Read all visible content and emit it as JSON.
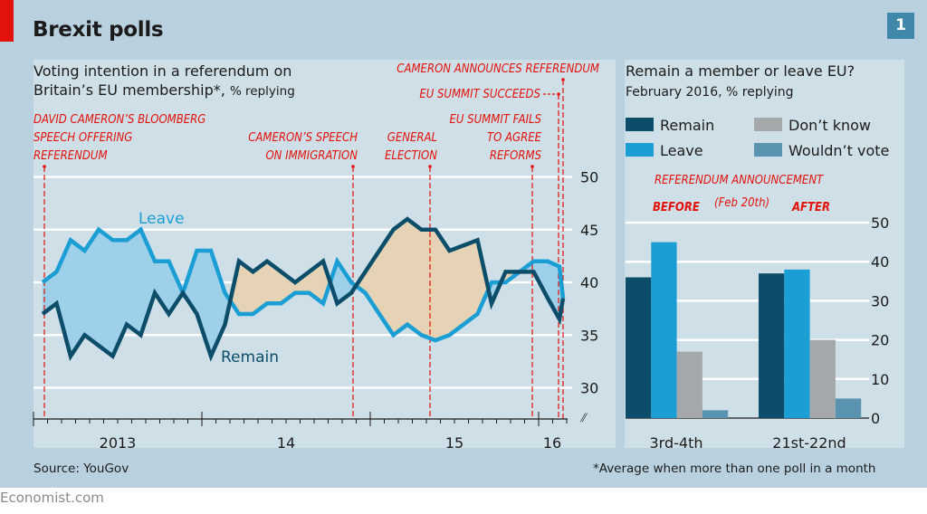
{
  "header": {
    "title": "Brexit polls",
    "badge": "1"
  },
  "left_chart": {
    "subtitle_line1": "Voting intention in a referendum on",
    "subtitle_line2": "Britain’s EU membership*,",
    "subtitle_unit": "% replying",
    "series_label_leave": "Leave",
    "series_label_remain": "Remain",
    "y_ticks": [
      "50",
      "45",
      "40",
      "35",
      "30"
    ],
    "x_labels": [
      "2013",
      "14",
      "15",
      "16"
    ],
    "annotations": [
      {
        "lines": [
          "DAVID CAMERON’S BLOOMBERG",
          "SPEECH OFFERING",
          "REFERENDUM"
        ],
        "month_index": 0.7
      },
      {
        "lines": [
          "CAMERON’S SPEECH",
          "ON IMMIGRATION"
        ],
        "month_index": 22.7
      },
      {
        "lines": [
          "GENERAL",
          "ELECTION"
        ],
        "month_index": 28.2
      },
      {
        "lines": [
          "EU SUMMIT FAILS",
          "TO AGREE",
          "REFORMS"
        ],
        "month_index": 35.5
      },
      {
        "lines": [
          "EU SUMMIT SUCCEEDS"
        ],
        "month_index": 37.4
      },
      {
        "lines": [
          "CAMERON ANNOUNCES REFERENDUM"
        ],
        "month_index": 37.7
      }
    ]
  },
  "right_chart": {
    "title": "Remain a member or leave EU?",
    "subtitle": "February 2016, % replying",
    "annotation_top": "REFERENDUM ANNOUNCEMENT",
    "annotation_before": "BEFORE",
    "annotation_date": "(Feb 20th)",
    "annotation_after": "AFTER"
  },
  "footer": {
    "source": "Source: YouGov",
    "footnote": "*Average when more than one poll in a month",
    "brand": "Economist.com"
  },
  "colors": {
    "remain": "#0c4e6a",
    "leave": "#1b9ed4",
    "dont_know": "#a5a8ab",
    "wouldnt_vote": "#5a93b0",
    "leave_lead_fill": "#9fd0ea",
    "remain_lead_fill": "#e6d3b5",
    "annotation": "#e3120b",
    "accent_red": "#e3120b"
  },
  "chart_data": [
    {
      "type": "line",
      "title": "Voting intention in a referendum on Britain’s EU membership*, % replying",
      "xlabel": "",
      "ylabel": "% replying",
      "ylim": [
        28,
        52
      ],
      "y_ticks": [
        30,
        35,
        40,
        45,
        50
      ],
      "x_tick_labels": [
        "2013",
        "14",
        "15",
        "16"
      ],
      "x_start": "Jan 2013",
      "x_unit": "month",
      "grid": true,
      "x": [
        "2013-01",
        "2013-02",
        "2013-03",
        "2013-04",
        "2013-05",
        "2013-06",
        "2013-07",
        "2013-08",
        "2013-09",
        "2013-10",
        "2013-11",
        "2013-12",
        "2014-01",
        "2014-02",
        "2014-03",
        "2014-04",
        "2014-05",
        "2014-06",
        "2014-07",
        "2014-08",
        "2014-09",
        "2014-10",
        "2014-11",
        "2014-12",
        "2015-01",
        "2015-02",
        "2015-03",
        "2015-04",
        "2015-05",
        "2015-06",
        "2015-07",
        "2015-08",
        "2015-09",
        "2015-10",
        "2015-11",
        "2015-12",
        "2016-01",
        "2016-02a",
        "2016-02b"
      ],
      "series": [
        {
          "name": "Leave",
          "values": [
            40,
            41,
            44,
            43,
            45,
            44,
            44,
            45,
            42,
            42,
            39,
            43,
            43,
            39,
            37,
            37,
            38,
            38,
            39,
            39,
            38,
            42,
            40,
            39,
            37,
            35,
            36,
            35,
            34.5,
            35,
            36,
            37,
            40,
            40,
            41,
            42,
            42,
            41.5,
            38.5
          ]
        },
        {
          "name": "Remain",
          "values": [
            37,
            38,
            33,
            35,
            34,
            33,
            36,
            35,
            39,
            37,
            39,
            37,
            33,
            36,
            42,
            41,
            42,
            41,
            40,
            41,
            42,
            38,
            39,
            41,
            43,
            45,
            46,
            45,
            45,
            43,
            43.5,
            44,
            38,
            41,
            41,
            41,
            38.5,
            36.5,
            38.5
          ]
        }
      ],
      "annotations": [
        "DAVID CAMERON’S BLOOMBERG SPEECH OFFERING REFERENDUM",
        "CAMERON’S SPEECH ON IMMIGRATION",
        "GENERAL ELECTION",
        "EU SUMMIT FAILS TO AGREE REFORMS",
        "EU SUMMIT SUCCEEDS",
        "CAMERON ANNOUNCES REFERENDUM"
      ]
    },
    {
      "type": "bar",
      "title": "Remain a member or leave EU?",
      "subtitle": "February 2016, % replying",
      "categories": [
        "3rd-4th",
        "21st-22nd"
      ],
      "series": [
        {
          "name": "Remain",
          "values": [
            36,
            37
          ]
        },
        {
          "name": "Leave",
          "values": [
            45,
            38
          ]
        },
        {
          "name": "Don’t know",
          "values": [
            17,
            20
          ]
        },
        {
          "name": "Wouldn’t vote",
          "values": [
            2,
            5
          ]
        }
      ],
      "ylim": [
        0,
        50
      ],
      "y_ticks": [
        0,
        10,
        20,
        30,
        40,
        50
      ],
      "legend": "top",
      "grid": true
    }
  ]
}
